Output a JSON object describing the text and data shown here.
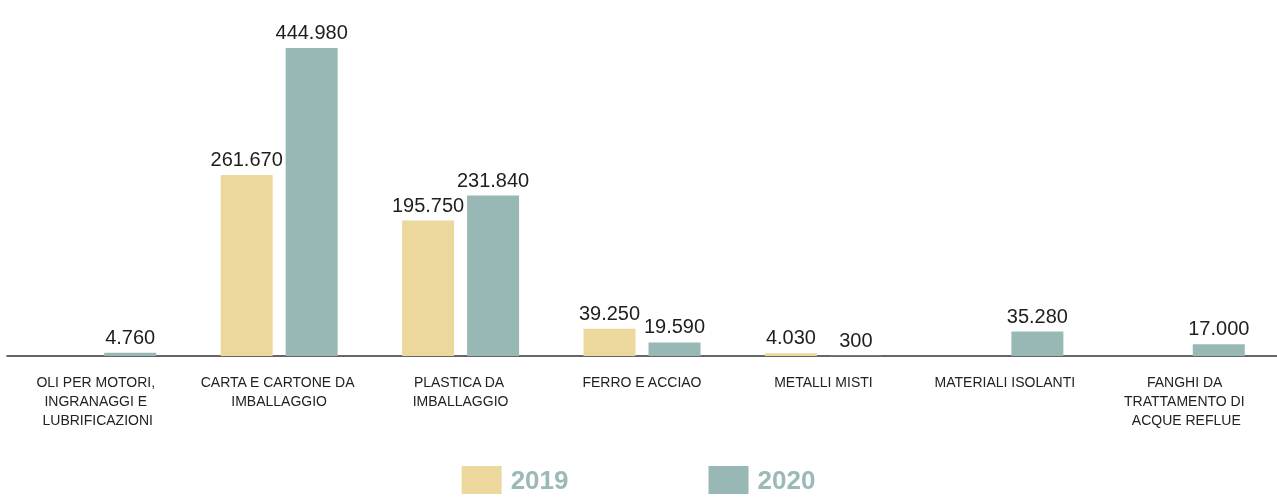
{
  "chart_data": {
    "type": "bar",
    "categories": [
      "OLI PER MOTORI, INGRANAGGI E LUBRIFICAZIONI",
      "CARTA E CARTONE DA IMBALLAGGIO",
      "PLASTICA DA IMBALLAGGIO",
      "FERRO E ACCIAO",
      "METALLI MISTI",
      "MATERIALI ISOLANTI",
      "FANGHI DA TRATTAMENTO DI ACQUE REFLUE"
    ],
    "series": [
      {
        "name": "2019",
        "color": "#ecd79d",
        "values": [
          null,
          261670,
          195750,
          39250,
          4030,
          null,
          null
        ],
        "value_labels": [
          null,
          "261.670",
          "195.750",
          "39.250",
          "4.030",
          null,
          null
        ]
      },
      {
        "name": "2020",
        "color": "#98b8b6",
        "values": [
          4760,
          444980,
          231840,
          19590,
          300,
          35280,
          17000
        ],
        "value_labels": [
          "4.760",
          "444.980",
          "231.840",
          "19.590",
          "300",
          "35.280",
          "17.000"
        ]
      }
    ],
    "legend": "bottom",
    "grid": false
  }
}
